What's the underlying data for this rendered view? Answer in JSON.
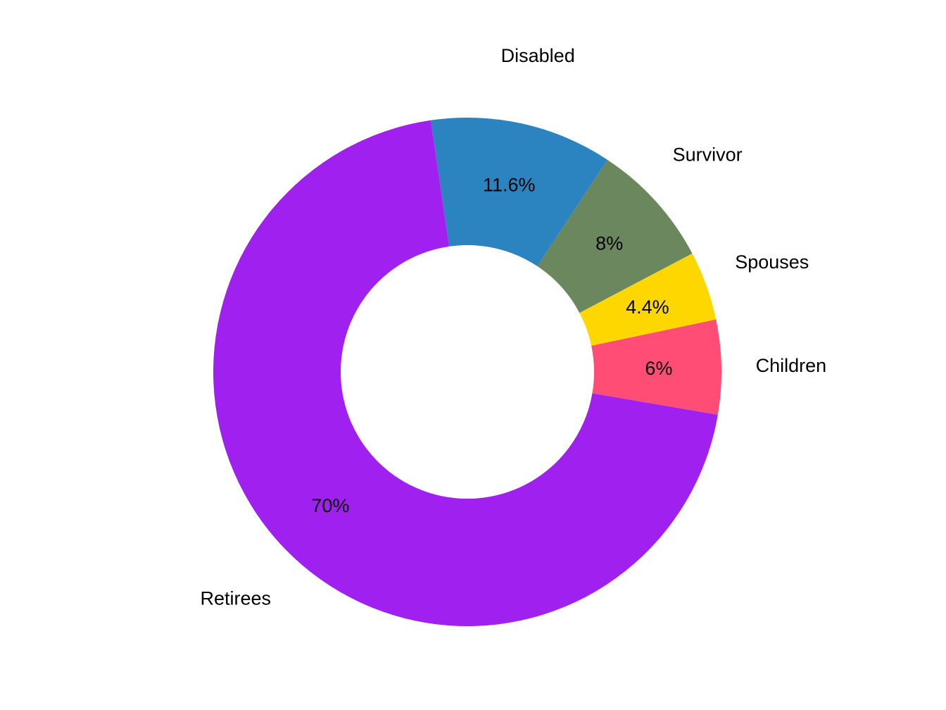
{
  "chart_data": {
    "type": "pie",
    "variant": "donut",
    "title": "",
    "start_direction": "clockwise from just left of top",
    "slices": [
      {
        "label": "Disabled",
        "value": 11.6,
        "value_label": "11.6%",
        "color": "#2B83C0"
      },
      {
        "label": "Survivor",
        "value": 8,
        "value_label": "8%",
        "color": "#6B875E"
      },
      {
        "label": "Spouses",
        "value": 4.4,
        "value_label": "4.4%",
        "color": "#FFD700"
      },
      {
        "label": "Children",
        "value": 6,
        "value_label": "6%",
        "color": "#FF4D76"
      },
      {
        "label": "Retirees",
        "value": 70,
        "value_label": "70%",
        "color": "#A020F0"
      }
    ],
    "legend": "none"
  }
}
